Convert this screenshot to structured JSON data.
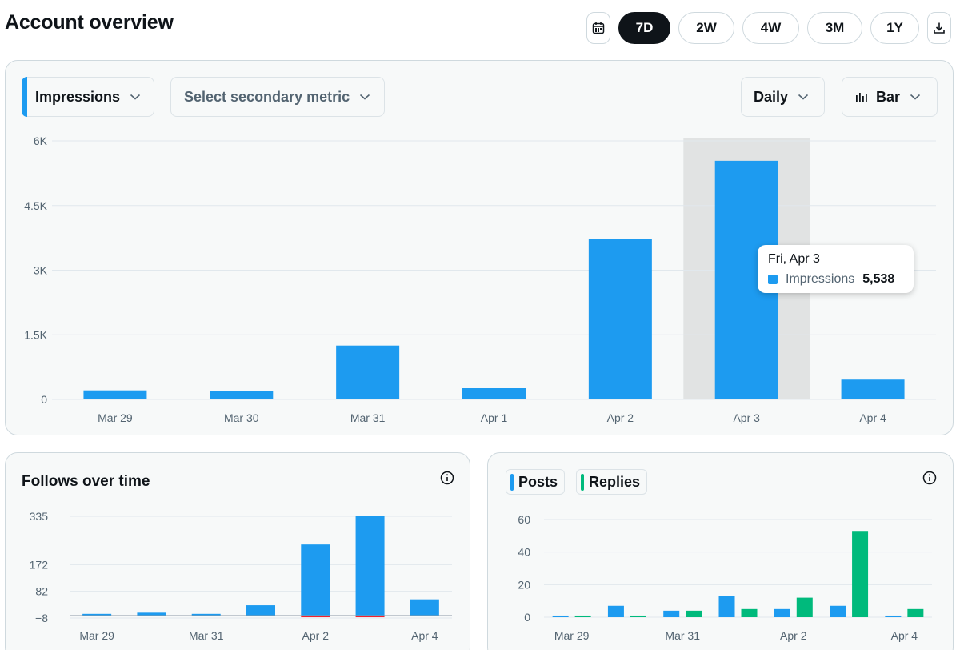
{
  "header": {
    "title": "Account overview"
  },
  "range": {
    "options": [
      "7D",
      "2W",
      "4W",
      "3M",
      "1Y"
    ],
    "active": "7D"
  },
  "main_panel": {
    "primary_metric": "Impressions",
    "secondary_metric_placeholder": "Select secondary metric",
    "interval": "Daily",
    "chart_type": "Bar",
    "tooltip": {
      "date": "Fri, Apr 3",
      "label": "Impressions",
      "value": "5,538"
    }
  },
  "follows_panel": {
    "title": "Follows over time"
  },
  "posts_panel": {
    "legend": [
      "Posts",
      "Replies"
    ]
  },
  "colors": {
    "blue": "#1d9bf0",
    "green": "#00ba7c",
    "red": "#f4212e",
    "highlight": "#e1e3e3"
  },
  "chart_data": [
    {
      "id": "impressions",
      "type": "bar",
      "title": "Impressions",
      "categories": [
        "Mar 29",
        "Mar 30",
        "Mar 31",
        "Apr 1",
        "Apr 2",
        "Apr 3",
        "Apr 4"
      ],
      "series": [
        {
          "name": "Impressions",
          "values": [
            210,
            200,
            1250,
            260,
            3720,
            5538,
            460
          ]
        }
      ],
      "ylim": [
        0,
        6000
      ],
      "yticks": [
        0,
        1500,
        3000,
        4500,
        6000
      ],
      "ytick_labels": [
        "0",
        "1.5K",
        "3K",
        "4.5K",
        "6K"
      ],
      "highlight_category": "Apr 3",
      "grid": true
    },
    {
      "id": "follows",
      "type": "bar",
      "title": "Follows over time",
      "categories": [
        "Mar 29",
        "Mar 30",
        "Mar 31",
        "Apr 1",
        "Apr 2",
        "Apr 3",
        "Apr 4"
      ],
      "x_tick_labels": [
        "Mar 29",
        "Mar 31",
        "Apr 2",
        "Apr 4"
      ],
      "series": [
        {
          "name": "Follows",
          "values": [
            6,
            10,
            6,
            35,
            240,
            335,
            55
          ]
        },
        {
          "name": "Unfollows",
          "values": [
            0,
            0,
            0,
            0,
            -2,
            -3,
            0
          ]
        }
      ],
      "ylim": [
        -8,
        335
      ],
      "yticks": [
        -8,
        82,
        172,
        335
      ],
      "ytick_labels": [
        "−8",
        "82",
        "172",
        "335"
      ],
      "grid": true
    },
    {
      "id": "posts",
      "type": "bar",
      "title": "Posts and Replies",
      "categories": [
        "Mar 29",
        "Mar 30",
        "Mar 31",
        "Apr 1",
        "Apr 2",
        "Apr 3",
        "Apr 4"
      ],
      "x_tick_labels": [
        "Mar 29",
        "Mar 31",
        "Apr 2",
        "Apr 4"
      ],
      "series": [
        {
          "name": "Posts",
          "values": [
            1,
            7,
            4,
            13,
            5,
            7,
            1
          ]
        },
        {
          "name": "Replies",
          "values": [
            1,
            1,
            4,
            5,
            12,
            53,
            5
          ]
        }
      ],
      "ylim": [
        0,
        60
      ],
      "yticks": [
        0,
        20,
        40,
        60
      ],
      "ytick_labels": [
        "0",
        "20",
        "40",
        "60"
      ],
      "grid": true
    }
  ]
}
